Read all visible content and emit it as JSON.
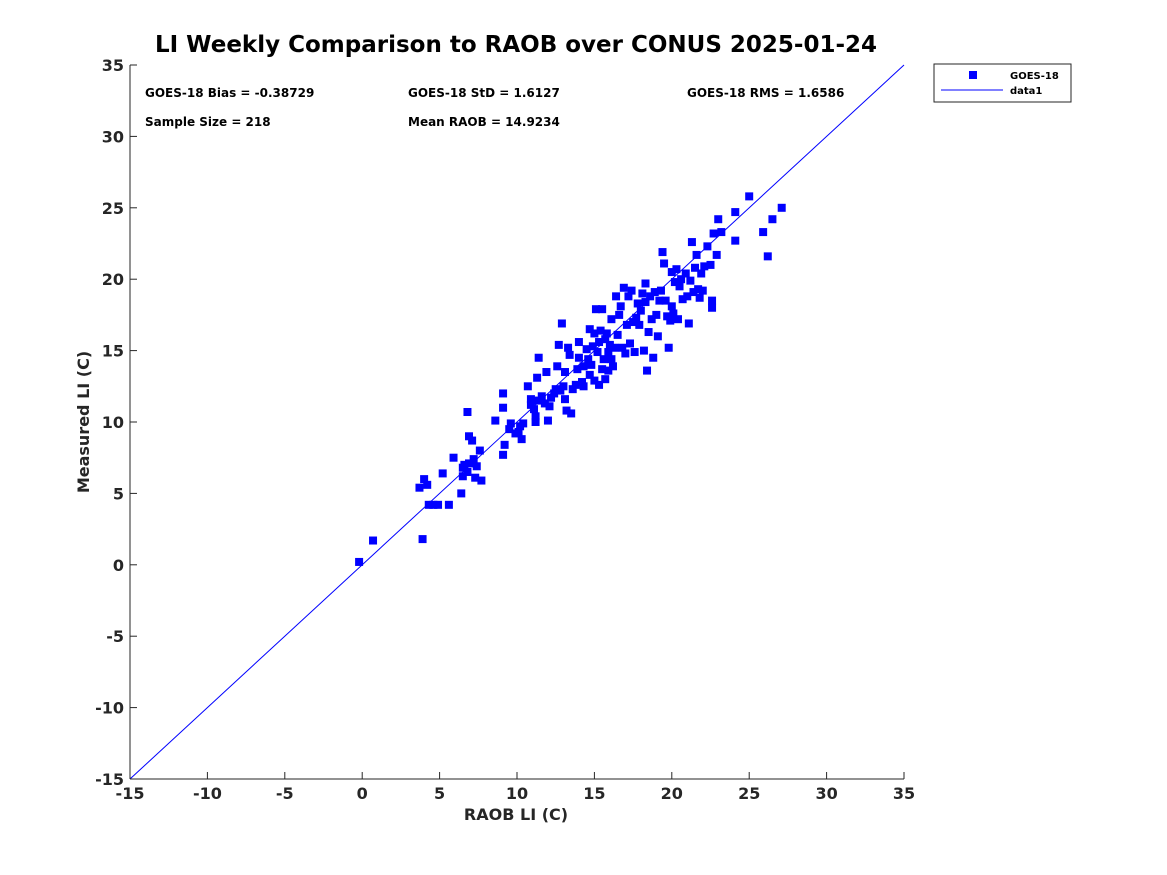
{
  "chart_data": {
    "type": "scatter",
    "title": "LI Weekly Comparison to RAOB over CONUS 2025-01-24",
    "xlabel": "RAOB LI (C)",
    "ylabel": "Measured LI (C)",
    "xlim": [
      -15,
      35
    ],
    "ylim": [
      -15,
      35
    ],
    "xticks": [
      "-15",
      "-10",
      "-5",
      "0",
      "5",
      "10",
      "15",
      "20",
      "25",
      "30",
      "35"
    ],
    "yticks": [
      "-15",
      "-10",
      "-5",
      "0",
      "5",
      "10",
      "15",
      "20",
      "25",
      "30",
      "35"
    ],
    "grid": false,
    "legend_position": "outside top-right",
    "colors": {
      "series": "#0000ff",
      "axis": "#262626"
    },
    "stats": {
      "bias": "GOES-18 Bias = -0.38729",
      "std": "GOES-18 StD = 1.6127",
      "rms": "GOES-18 RMS = 1.6586",
      "sample_size": "Sample Size = 218",
      "mean_raob": "Mean RAOB = 14.9234"
    },
    "series": [
      {
        "name": "GOES-18",
        "marker": "square",
        "points": [
          [
            -0.2,
            0.2
          ],
          [
            0.7,
            1.7
          ],
          [
            3.9,
            1.8
          ],
          [
            3.7,
            5.4
          ],
          [
            4.0,
            6.0
          ],
          [
            4.2,
            5.6
          ],
          [
            4.3,
            4.2
          ],
          [
            4.6,
            4.2
          ],
          [
            4.9,
            4.2
          ],
          [
            5.2,
            6.4
          ],
          [
            5.6,
            4.2
          ],
          [
            5.9,
            7.5
          ],
          [
            6.4,
            5.0
          ],
          [
            6.5,
            6.2
          ],
          [
            6.5,
            6.8
          ],
          [
            6.6,
            7.0
          ],
          [
            6.8,
            6.5
          ],
          [
            6.9,
            7.1
          ],
          [
            6.8,
            10.7
          ],
          [
            6.9,
            9.0
          ],
          [
            7.1,
            8.7
          ],
          [
            7.2,
            7.4
          ],
          [
            7.3,
            6.1
          ],
          [
            7.4,
            6.9
          ],
          [
            7.6,
            8.0
          ],
          [
            7.7,
            5.9
          ],
          [
            8.6,
            10.1
          ],
          [
            9.1,
            7.7
          ],
          [
            9.2,
            8.4
          ],
          [
            9.1,
            11.0
          ],
          [
            9.1,
            12.0
          ],
          [
            9.5,
            9.5
          ],
          [
            9.6,
            9.9
          ],
          [
            9.9,
            9.2
          ],
          [
            10.1,
            9.3
          ],
          [
            10.2,
            9.7
          ],
          [
            10.4,
            9.9
          ],
          [
            10.3,
            8.8
          ],
          [
            10.7,
            12.5
          ],
          [
            10.9,
            11.2
          ],
          [
            10.9,
            11.6
          ],
          [
            11.1,
            10.9
          ],
          [
            11.2,
            10.4
          ],
          [
            11.2,
            10.0
          ],
          [
            11.3,
            11.5
          ],
          [
            11.3,
            13.1
          ],
          [
            11.4,
            14.5
          ],
          [
            11.6,
            11.8
          ],
          [
            11.8,
            11.3
          ],
          [
            11.9,
            13.5
          ],
          [
            12.0,
            10.1
          ],
          [
            12.1,
            11.1
          ],
          [
            12.2,
            11.7
          ],
          [
            12.4,
            12.0
          ],
          [
            12.5,
            12.3
          ],
          [
            12.6,
            13.9
          ],
          [
            12.7,
            15.4
          ],
          [
            12.8,
            12.2
          ],
          [
            12.9,
            16.9
          ],
          [
            13.0,
            12.5
          ],
          [
            13.1,
            13.5
          ],
          [
            13.1,
            11.6
          ],
          [
            13.2,
            10.8
          ],
          [
            13.3,
            15.2
          ],
          [
            13.4,
            14.7
          ],
          [
            13.5,
            10.6
          ],
          [
            13.6,
            12.3
          ],
          [
            13.8,
            12.6
          ],
          [
            13.9,
            13.7
          ],
          [
            14.0,
            14.5
          ],
          [
            14.0,
            15.6
          ],
          [
            14.2,
            12.8
          ],
          [
            14.3,
            12.5
          ],
          [
            14.3,
            13.9
          ],
          [
            14.5,
            15.1
          ],
          [
            14.6,
            14.4
          ],
          [
            14.7,
            16.5
          ],
          [
            14.7,
            13.3
          ],
          [
            14.8,
            14.0
          ],
          [
            14.9,
            15.3
          ],
          [
            15.0,
            12.9
          ],
          [
            15.0,
            16.2
          ],
          [
            15.1,
            17.9
          ],
          [
            15.2,
            14.9
          ],
          [
            15.3,
            12.6
          ],
          [
            15.3,
            15.6
          ],
          [
            15.4,
            16.4
          ],
          [
            15.5,
            17.9
          ],
          [
            15.5,
            13.7
          ],
          [
            15.6,
            14.4
          ],
          [
            15.7,
            15.8
          ],
          [
            15.7,
            13.0
          ],
          [
            15.8,
            16.2
          ],
          [
            15.9,
            14.9
          ],
          [
            15.9,
            13.6
          ],
          [
            16.0,
            15.4
          ],
          [
            16.1,
            14.4
          ],
          [
            16.1,
            17.2
          ],
          [
            16.2,
            13.9
          ],
          [
            16.3,
            15.2
          ],
          [
            16.4,
            18.8
          ],
          [
            16.5,
            16.1
          ],
          [
            16.6,
            17.5
          ],
          [
            16.7,
            18.1
          ],
          [
            16.8,
            15.2
          ],
          [
            16.9,
            19.4
          ],
          [
            17.0,
            14.8
          ],
          [
            17.1,
            16.8
          ],
          [
            17.2,
            18.8
          ],
          [
            17.3,
            15.5
          ],
          [
            17.4,
            19.2
          ],
          [
            17.5,
            17.0
          ],
          [
            17.6,
            14.9
          ],
          [
            17.7,
            17.3
          ],
          [
            17.8,
            18.3
          ],
          [
            17.9,
            16.8
          ],
          [
            18.0,
            17.8
          ],
          [
            18.1,
            19.0
          ],
          [
            18.2,
            15.0
          ],
          [
            18.3,
            18.4
          ],
          [
            18.3,
            19.7
          ],
          [
            18.4,
            13.6
          ],
          [
            18.5,
            16.3
          ],
          [
            18.6,
            18.8
          ],
          [
            18.7,
            17.2
          ],
          [
            18.8,
            14.5
          ],
          [
            18.9,
            19.1
          ],
          [
            19.0,
            17.5
          ],
          [
            19.1,
            16.0
          ],
          [
            19.2,
            18.5
          ],
          [
            19.3,
            19.2
          ],
          [
            19.4,
            21.9
          ],
          [
            19.5,
            21.1
          ],
          [
            19.6,
            18.5
          ],
          [
            19.7,
            17.4
          ],
          [
            19.8,
            15.2
          ],
          [
            19.9,
            17.1
          ],
          [
            20.0,
            18.1
          ],
          [
            20.0,
            20.5
          ],
          [
            20.1,
            17.6
          ],
          [
            20.2,
            19.8
          ],
          [
            20.3,
            20.7
          ],
          [
            20.4,
            17.2
          ],
          [
            20.5,
            19.5
          ],
          [
            20.6,
            20.0
          ],
          [
            20.7,
            18.6
          ],
          [
            20.9,
            20.4
          ],
          [
            21.0,
            18.8
          ],
          [
            21.1,
            16.9
          ],
          [
            21.2,
            19.9
          ],
          [
            21.3,
            22.6
          ],
          [
            21.4,
            19.1
          ],
          [
            21.5,
            20.8
          ],
          [
            21.6,
            21.7
          ],
          [
            21.7,
            19.3
          ],
          [
            21.8,
            18.7
          ],
          [
            21.9,
            20.4
          ],
          [
            22.0,
            19.2
          ],
          [
            22.1,
            20.9
          ],
          [
            22.3,
            22.3
          ],
          [
            22.5,
            21.0
          ],
          [
            22.6,
            18.0
          ],
          [
            22.6,
            18.5
          ],
          [
            22.7,
            23.2
          ],
          [
            22.9,
            21.7
          ],
          [
            23.0,
            24.2
          ],
          [
            23.2,
            23.3
          ],
          [
            24.1,
            22.7
          ],
          [
            24.1,
            24.7
          ],
          [
            25.0,
            25.8
          ],
          [
            25.9,
            23.3
          ],
          [
            26.2,
            21.6
          ],
          [
            26.5,
            24.2
          ],
          [
            27.1,
            25.0
          ]
        ]
      }
    ],
    "reference_line": {
      "name": "data1",
      "from": [
        -15,
        -15
      ],
      "to": [
        35,
        35
      ]
    }
  }
}
